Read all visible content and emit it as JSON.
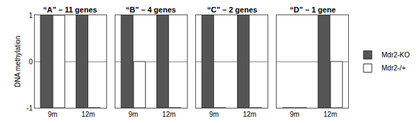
{
  "chart_data": [
    {
      "type": "bar",
      "title": "“A” – 11 genes",
      "ylabel": "DNA methylation",
      "categories": [
        "9m",
        "12m"
      ],
      "series": [
        {
          "name": "Mdr2-KO",
          "color": "#555555",
          "values": [
            1,
            1
          ]
        },
        {
          "name": "Mdr2-/+",
          "color": "#ffffff",
          "values": [
            1,
            -1
          ]
        }
      ],
      "ylim": [
        -1,
        1
      ],
      "yticks": [
        -1,
        0,
        1
      ],
      "grid": true,
      "legend": "right"
    },
    {
      "type": "bar",
      "title": "“B” – 4 genes",
      "categories": [
        "9m",
        "12m"
      ],
      "series": [
        {
          "name": "Mdr2-KO",
          "color": "#555555",
          "values": [
            1,
            1
          ]
        },
        {
          "name": "Mdr2-/+",
          "color": "#ffffff",
          "values": [
            0,
            -1
          ]
        }
      ],
      "ylim": [
        -1,
        1
      ],
      "yticks": [
        -1,
        0,
        1
      ],
      "grid": true,
      "tick_labels": "x"
    },
    {
      "type": "bar",
      "title": "“C” – 2 genes",
      "categories": [
        "9m",
        "12m"
      ],
      "series": [
        {
          "name": "Mdr2-KO",
          "color": "#555555",
          "values": [
            1,
            1
          ]
        },
        {
          "name": "Mdr2-/+",
          "color": "#ffffff",
          "values": [
            -1,
            -1
          ]
        }
      ],
      "ylim": [
        -1,
        1
      ],
      "yticks": [
        -1,
        0,
        1
      ],
      "grid": true,
      "tick_labels": "x"
    },
    {
      "type": "bar",
      "title": "“D” – 1 gene",
      "categories": [
        "9m",
        "12m"
      ],
      "series": [
        {
          "name": "Mdr2-KO",
          "color": "#555555",
          "values": [
            -1,
            1
          ]
        },
        {
          "name": "Mdr2-/+",
          "color": "#ffffff",
          "values": [
            -1,
            0
          ]
        }
      ],
      "ylim": [
        -1,
        1
      ],
      "yticks": [
        -1,
        0,
        1
      ],
      "grid": true,
      "tick_labels": "x"
    }
  ]
}
